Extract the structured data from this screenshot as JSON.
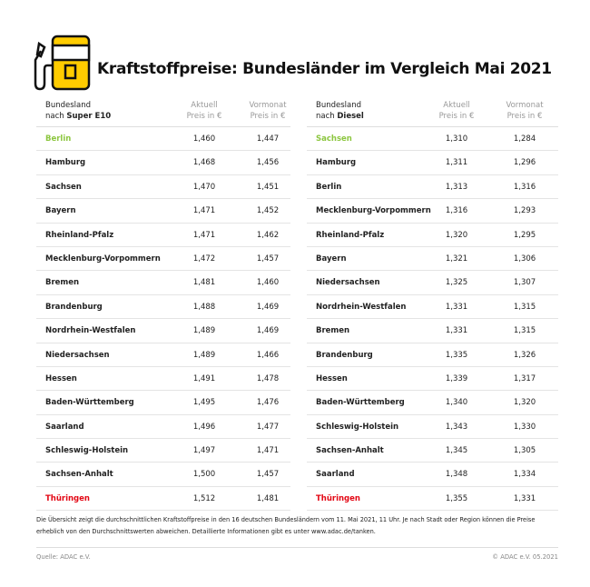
{
  "title": "Kraftstoffpreise: Bundesländer im Vergleich Mai 2021",
  "colors": {
    "best": "#8cc63f",
    "worst": "#e30613",
    "icon_yellow": "#ffcc00"
  },
  "tables": [
    {
      "header": {
        "name_line1": "Bundesland",
        "name_prefix": "nach ",
        "name_fuel": "Super E10",
        "col1_line1": "Aktuell",
        "col1_line2": "Preis in €",
        "col2_line1": "Vormonat",
        "col2_line2": "Preis in €"
      },
      "rows": [
        [
          "Berlin",
          "1,460",
          "1,447"
        ],
        [
          "Hamburg",
          "1,468",
          "1,456"
        ],
        [
          "Sachsen",
          "1,470",
          "1,451"
        ],
        [
          "Bayern",
          "1,471",
          "1,452"
        ],
        [
          "Rheinland-Pfalz",
          "1,471",
          "1,462"
        ],
        [
          "Mecklenburg-Vorpommern",
          "1,472",
          "1,457"
        ],
        [
          "Bremen",
          "1,481",
          "1,460"
        ],
        [
          "Brandenburg",
          "1,488",
          "1,469"
        ],
        [
          "Nordrhein-Westfalen",
          "1,489",
          "1,469"
        ],
        [
          "Niedersachsen",
          "1,489",
          "1,466"
        ],
        [
          "Hessen",
          "1,491",
          "1,478"
        ],
        [
          "Baden-Württemberg",
          "1,495",
          "1,476"
        ],
        [
          "Saarland",
          "1,496",
          "1,477"
        ],
        [
          "Schleswig-Holstein",
          "1,497",
          "1,471"
        ],
        [
          "Sachsen-Anhalt",
          "1,500",
          "1,457"
        ],
        [
          "Thüringen",
          "1,512",
          "1,481"
        ]
      ]
    },
    {
      "header": {
        "name_line1": "Bundesland",
        "name_prefix": "nach ",
        "name_fuel": "Diesel",
        "col1_line1": "Aktuell",
        "col1_line2": "Preis in €",
        "col2_line1": "Vormonat",
        "col2_line2": "Preis in €"
      },
      "rows": [
        [
          "Sachsen",
          "1,310",
          "1,284"
        ],
        [
          "Hamburg",
          "1,311",
          "1,296"
        ],
        [
          "Berlin",
          "1,313",
          "1,316"
        ],
        [
          "Mecklenburg-Vorpommern",
          "1,316",
          "1,293"
        ],
        [
          "Rheinland-Pfalz",
          "1,320",
          "1,295"
        ],
        [
          "Bayern",
          "1,321",
          "1,306"
        ],
        [
          "Niedersachsen",
          "1,325",
          "1,307"
        ],
        [
          "Nordrhein-Westfalen",
          "1,331",
          "1,315"
        ],
        [
          "Bremen",
          "1,331",
          "1,315"
        ],
        [
          "Brandenburg",
          "1,335",
          "1,326"
        ],
        [
          "Hessen",
          "1,339",
          "1,317"
        ],
        [
          "Baden-Württemberg",
          "1,340",
          "1,320"
        ],
        [
          "Schleswig-Holstein",
          "1,343",
          "1,330"
        ],
        [
          "Sachsen-Anhalt",
          "1,345",
          "1,305"
        ],
        [
          "Saarland",
          "1,348",
          "1,334"
        ],
        [
          "Thüringen",
          "1,355",
          "1,331"
        ]
      ]
    }
  ],
  "footnote": "Die Übersicht zeigt die durchschnittlichen Kraftstoffpreise in den 16 deutschen Bundesländern vom 11. Mai 2021, 11 Uhr. Je nach Stadt oder Region können die Preise erheblich von den Durchschnittswerten abweichen. Detaillierte Informationen gibt es unter www.adac.de/tanken.",
  "source": "Quelle: ADAC e.V.",
  "copyright": "© ADAC e.V. 05.2021"
}
